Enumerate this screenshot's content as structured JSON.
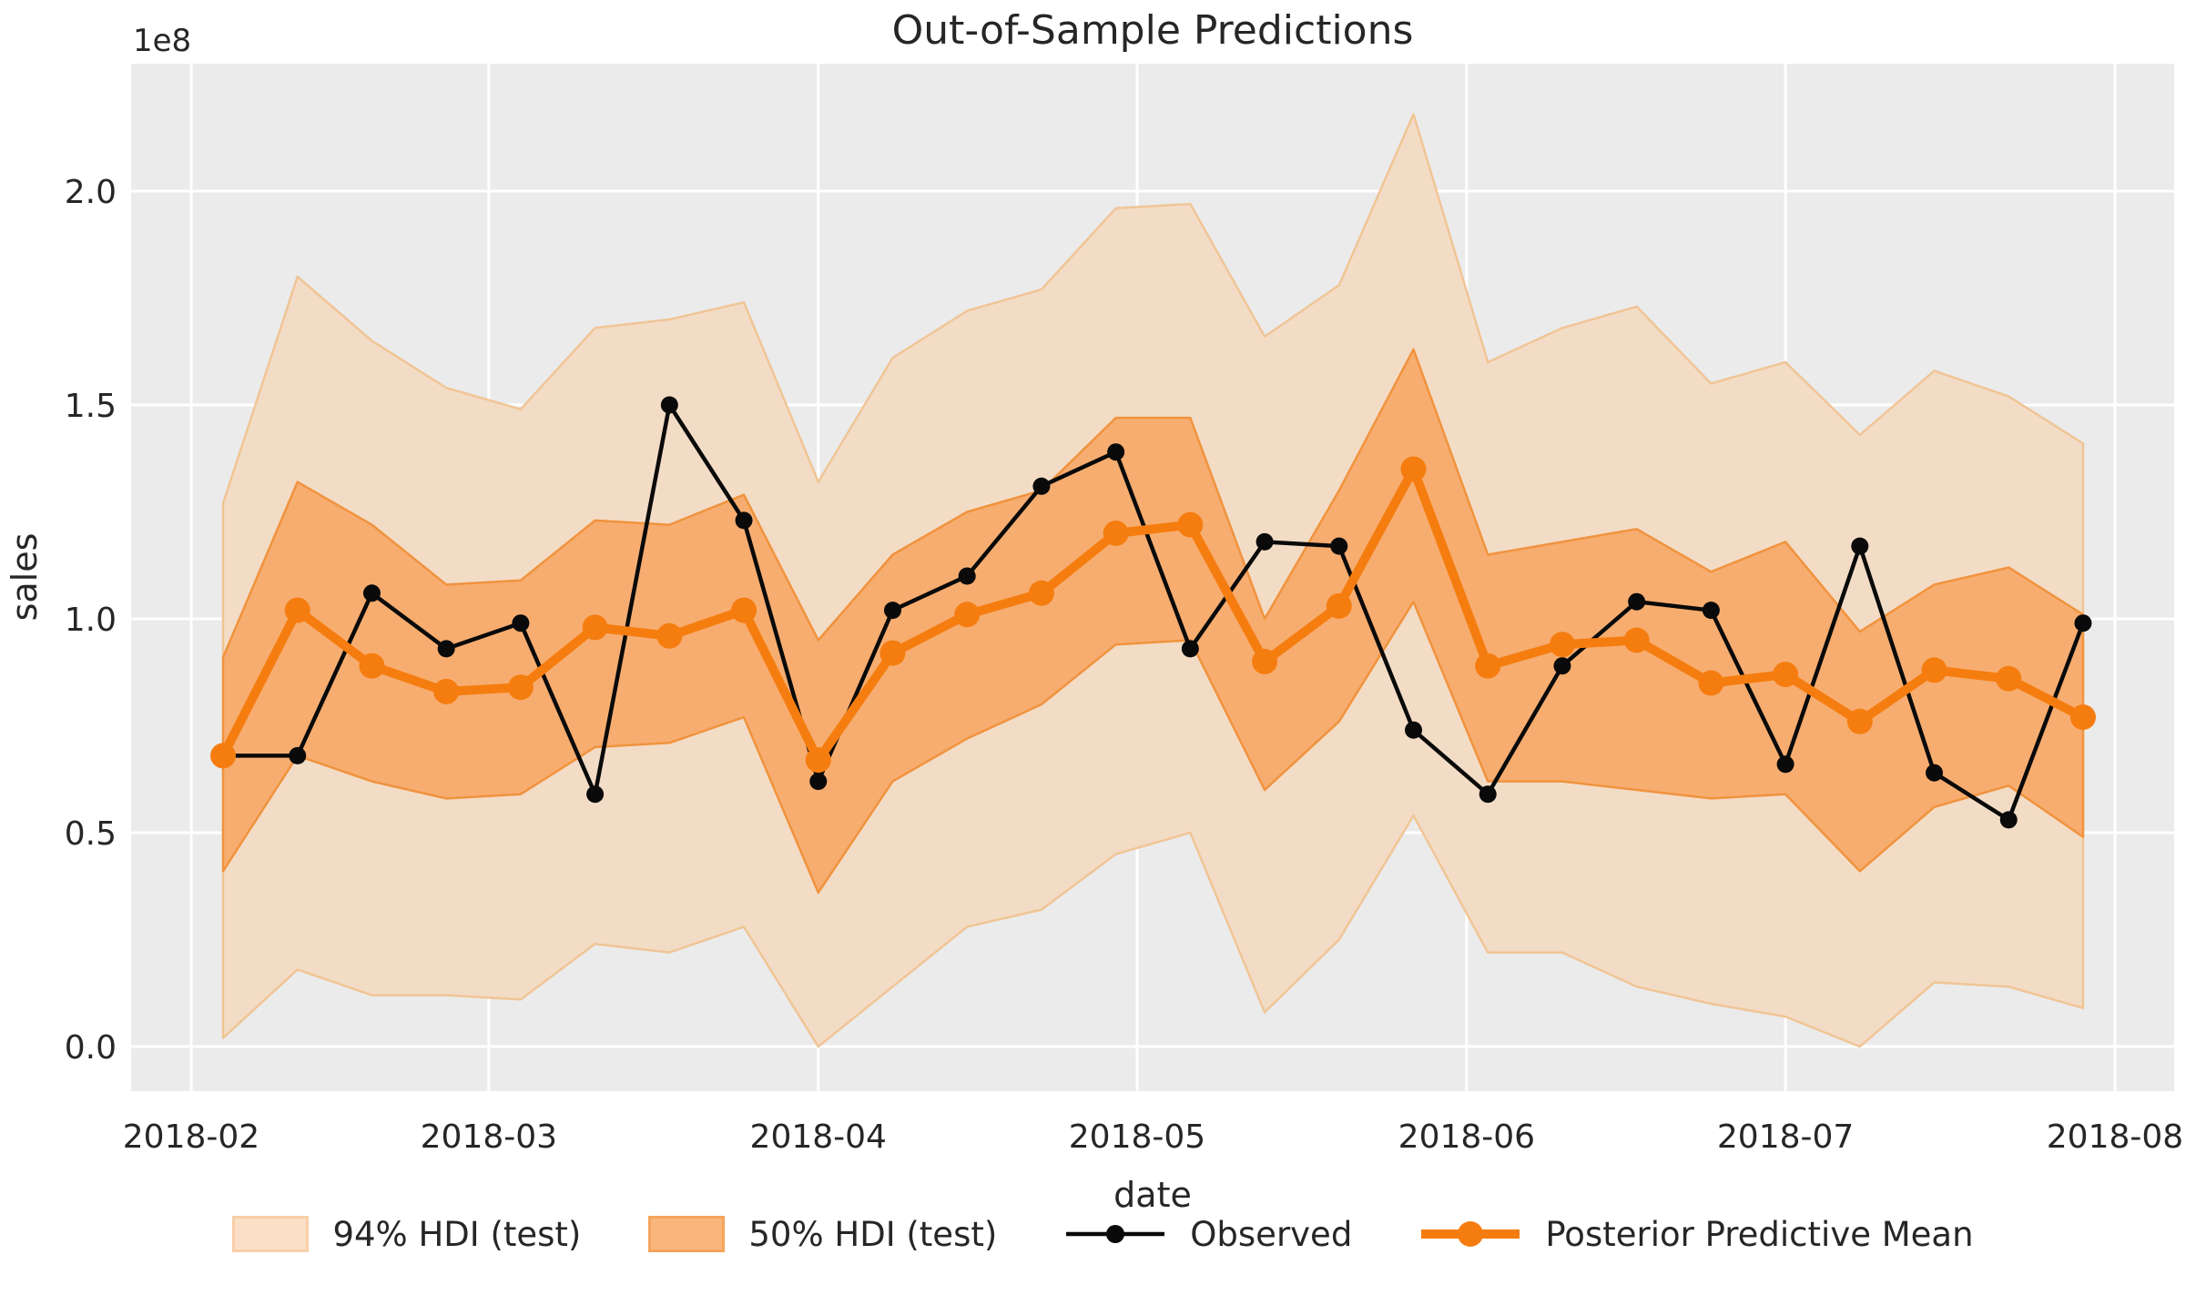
{
  "header": {
    "title": "Out-of-Sample Predictions"
  },
  "axes": {
    "xlabel": "date",
    "ylabel": "sales",
    "offset_text": "1e8"
  },
  "theme": {
    "figure_bg": "#ffffff",
    "axes_bg": "#ebebeb",
    "grid_color": "#ffffff",
    "text_color": "#262626",
    "observed_color": "#0a0a0a",
    "mean_color": "#f57d0f",
    "hdi94_fill": "#f3dcc6",
    "hdi94_edge": "#f0c596",
    "hdi50_fill": "#f7ad70",
    "hdi50_edge": "#f0933e"
  },
  "legend": {
    "items": [
      {
        "label": "94% HDI (test)",
        "kind": "patch",
        "fill": "#fbe0c7",
        "edge": "#f8cfa8"
      },
      {
        "label": "50% HDI (test)",
        "kind": "patch",
        "fill": "#f9b67c",
        "edge": "#f5a45c"
      },
      {
        "label": "Observed",
        "kind": "line",
        "color": "#0a0a0a",
        "line_weight": "thin"
      },
      {
        "label": "Posterior Predictive Mean",
        "kind": "line",
        "color": "#f57d0f",
        "line_weight": "thick"
      }
    ]
  },
  "chart_data": {
    "type": "line",
    "title": "Out-of-Sample Predictions",
    "xlabel": "date",
    "ylabel": "sales",
    "y_unit": "1e8",
    "y_unit_multiplier": 100000000,
    "ylim": [
      -0.17,
      2.3
    ],
    "grid": true,
    "legend_position": "bottom-center",
    "x_range": {
      "start": "2018-02-01",
      "end": "2018-08-01"
    },
    "x_ticks": {
      "labels": [
        "2018-02",
        "2018-03",
        "2018-04",
        "2018-05",
        "2018-06",
        "2018-07",
        "2018-08"
      ]
    },
    "y_ticks": {
      "labels": [
        "0.0",
        "0.5",
        "1.0",
        "1.5",
        "2.0"
      ],
      "values": [
        0.0,
        0.5,
        1.0,
        1.5,
        2.0
      ]
    },
    "dates": [
      "2018-02-04",
      "2018-02-11",
      "2018-02-18",
      "2018-02-25",
      "2018-03-04",
      "2018-03-11",
      "2018-03-18",
      "2018-03-25",
      "2018-04-01",
      "2018-04-08",
      "2018-04-15",
      "2018-04-22",
      "2018-04-29",
      "2018-05-06",
      "2018-05-13",
      "2018-05-20",
      "2018-05-27",
      "2018-06-03",
      "2018-06-10",
      "2018-06-17",
      "2018-06-24",
      "2018-07-01",
      "2018-07-08",
      "2018-07-15",
      "2018-07-22",
      "2018-07-29"
    ],
    "series": [
      {
        "name": "Observed",
        "color": "#0a0a0a",
        "values": [
          0.68,
          0.68,
          1.06,
          0.93,
          0.99,
          0.59,
          1.5,
          1.23,
          0.62,
          1.02,
          1.1,
          1.31,
          1.39,
          0.93,
          1.18,
          1.17,
          0.74,
          0.59,
          0.89,
          1.04,
          1.02,
          0.66,
          1.17,
          0.64,
          0.53,
          0.99
        ]
      },
      {
        "name": "Posterior Predictive Mean",
        "color": "#f57d0f",
        "values": [
          0.68,
          1.02,
          0.89,
          0.83,
          0.84,
          0.98,
          0.96,
          1.02,
          0.67,
          0.92,
          1.01,
          1.06,
          1.2,
          1.22,
          0.9,
          1.03,
          1.35,
          0.89,
          0.94,
          0.95,
          0.85,
          0.87,
          0.76,
          0.88,
          0.86,
          0.77
        ]
      }
    ],
    "bands": [
      {
        "name": "94% HDI (test)",
        "fill": "#f3dcc6",
        "edge": "#f0c596",
        "lower": [
          0.02,
          0.18,
          0.12,
          0.12,
          0.11,
          0.24,
          0.22,
          0.28,
          0.0,
          0.14,
          0.28,
          0.32,
          0.45,
          0.5,
          0.08,
          0.25,
          0.54,
          0.22,
          0.22,
          0.14,
          0.1,
          0.07,
          0.0,
          0.15,
          0.14,
          0.09
        ],
        "upper": [
          1.27,
          1.8,
          1.65,
          1.54,
          1.49,
          1.68,
          1.7,
          1.74,
          1.32,
          1.61,
          1.72,
          1.77,
          1.96,
          1.97,
          1.66,
          1.78,
          2.18,
          1.6,
          1.68,
          1.73,
          1.55,
          1.6,
          1.43,
          1.58,
          1.52,
          1.41
        ]
      },
      {
        "name": "50% HDI (test)",
        "fill": "#f7ad70",
        "edge": "#f0933e",
        "lower": [
          0.41,
          0.68,
          0.62,
          0.58,
          0.59,
          0.7,
          0.71,
          0.77,
          0.36,
          0.62,
          0.72,
          0.8,
          0.94,
          0.95,
          0.6,
          0.76,
          1.04,
          0.62,
          0.62,
          0.6,
          0.58,
          0.59,
          0.41,
          0.56,
          0.61,
          0.49
        ],
        "upper": [
          0.91,
          1.32,
          1.22,
          1.08,
          1.09,
          1.23,
          1.22,
          1.29,
          0.95,
          1.15,
          1.25,
          1.3,
          1.47,
          1.47,
          1.0,
          1.3,
          1.63,
          1.15,
          1.18,
          1.21,
          1.11,
          1.18,
          0.97,
          1.08,
          1.12,
          1.01
        ]
      }
    ]
  }
}
